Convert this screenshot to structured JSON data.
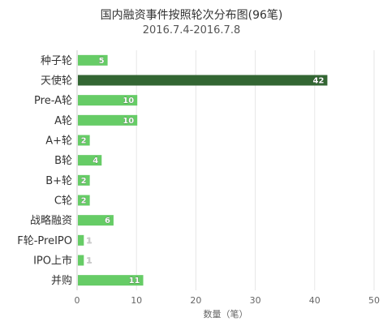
{
  "chart_data": {
    "type": "bar",
    "orientation": "horizontal",
    "title": "国内融资事件按照轮次分布图(96笔)",
    "subtitle": "2016.7.4-2016.7.8",
    "xlabel": "数量（笔）",
    "ylabel": "",
    "categories": [
      "种子轮",
      "天使轮",
      "Pre-A轮",
      "A轮",
      "A+轮",
      "B轮",
      "B+轮",
      "C轮",
      "战略融资",
      "F轮-PreIPO",
      "IPO上市",
      "并购"
    ],
    "values": [
      5,
      42,
      10,
      10,
      2,
      4,
      2,
      2,
      6,
      1,
      1,
      11
    ],
    "xlim": [
      0,
      50
    ],
    "xticks": [
      0,
      10,
      20,
      30,
      40,
      50
    ],
    "grid": true,
    "highlight_index": 1,
    "colors": {
      "bar": "#66cc66",
      "highlight": "#336633",
      "grid": "#e6e6e6",
      "axis": "#cccccc"
    }
  }
}
